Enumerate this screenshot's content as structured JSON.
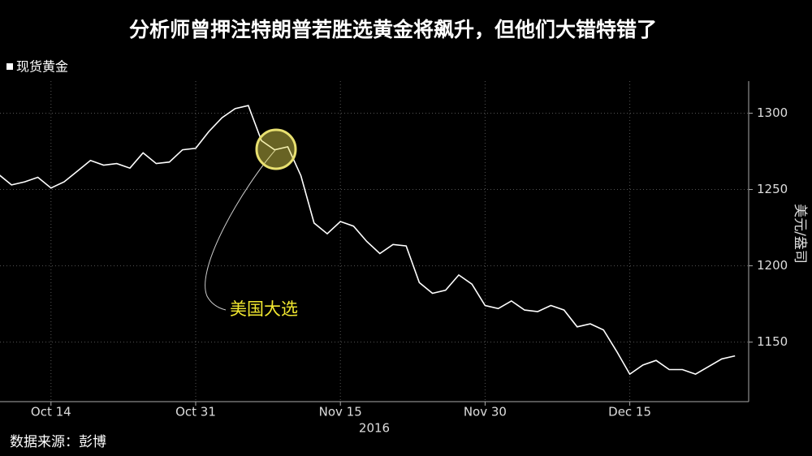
{
  "chart_data": {
    "type": "line",
    "title": "分析师曾押注特朗普若胜选黄金将飙升，但他们大错特错了",
    "categories": [
      null,
      null,
      null,
      null,
      "Oct 14",
      null,
      null,
      null,
      null,
      null,
      null,
      null,
      null,
      null,
      null,
      "Oct 31",
      null,
      null,
      null,
      null,
      null,
      null,
      null,
      null,
      null,
      null,
      "Nov 15",
      null,
      null,
      null,
      null,
      null,
      null,
      null,
      null,
      null,
      null,
      "Nov 30",
      null,
      null,
      null,
      null,
      null,
      null,
      null,
      null,
      null,
      null,
      "Dec 15",
      null,
      null,
      null,
      null,
      null,
      null,
      null,
      null
    ],
    "xlabel": "2016",
    "ylabel": "美元/盎司",
    "series": [
      {
        "name": "现货黄金",
        "color": "#ffffff",
        "values": [
          1260,
          1253,
          1255,
          1258,
          1251,
          1255,
          1262,
          1269,
          1266,
          1267,
          1264,
          1274,
          1267,
          1268,
          1276,
          1277,
          1288,
          1297,
          1303,
          1305,
          1282,
          1276,
          1278,
          1259,
          1228,
          1221,
          1229,
          1226,
          1216,
          1208,
          1214,
          1213,
          1189,
          1182,
          1184,
          1194,
          1188,
          1174,
          1172,
          1177,
          1171,
          1170,
          1174,
          1171,
          1160,
          1162,
          1158,
          1144,
          1129,
          1135,
          1138,
          1132,
          1132,
          1129,
          1134,
          1139,
          1141
        ]
      }
    ],
    "ylim": [
      1111,
      1321
    ],
    "yticks": [
      1150,
      1200,
      1250,
      1300
    ],
    "grid": true,
    "annotation": "美国大选",
    "source": "数据来源：彭博"
  }
}
